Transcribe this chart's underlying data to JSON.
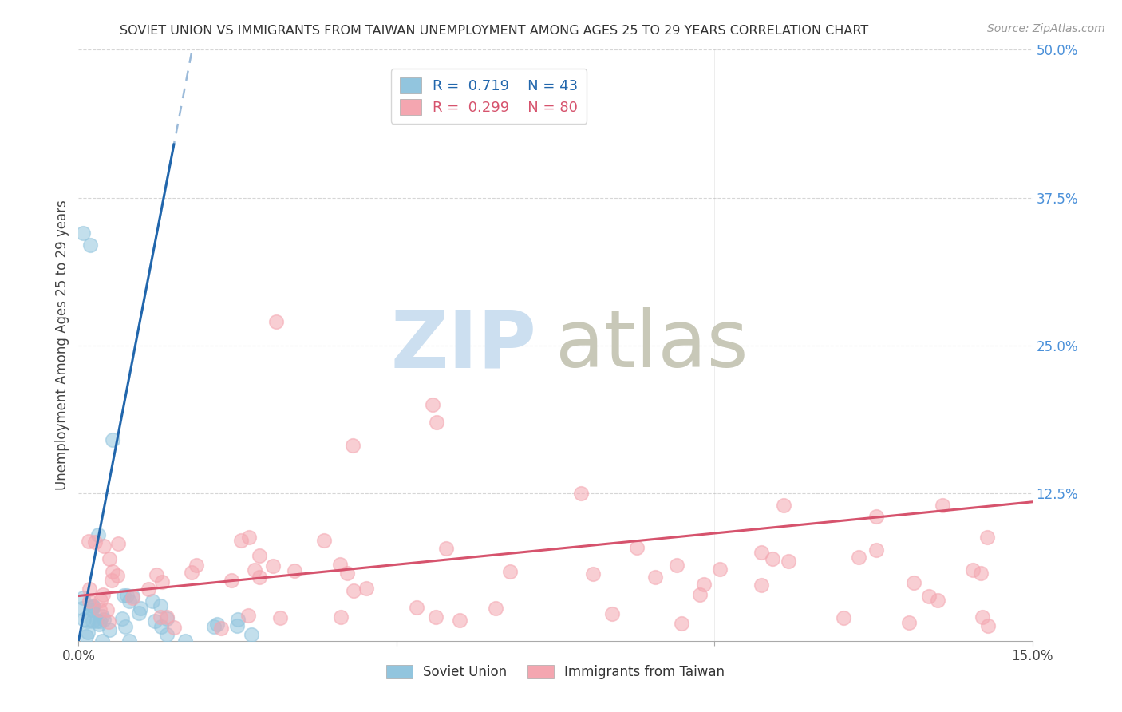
{
  "title": "SOVIET UNION VS IMMIGRANTS FROM TAIWAN UNEMPLOYMENT AMONG AGES 25 TO 29 YEARS CORRELATION CHART",
  "source": "Source: ZipAtlas.com",
  "ylabel": "Unemployment Among Ages 25 to 29 years",
  "xlim": [
    0,
    0.15
  ],
  "ylim": [
    0,
    0.5
  ],
  "soviet_R": 0.719,
  "soviet_N": 43,
  "taiwan_R": 0.299,
  "taiwan_N": 80,
  "soviet_color": "#92c5de",
  "taiwan_color": "#f4a6b0",
  "soviet_line_color": "#2166ac",
  "taiwan_line_color": "#d6536d",
  "right_label_color": "#4a90d9",
  "background_color": "#ffffff",
  "grid_color": "#cccccc",
  "watermark_zip_color": "#ccdff0",
  "watermark_atlas_color": "#c8c8b8",
  "legend_box_color": "#e8e8f8",
  "soviet_line_slope": 28.0,
  "soviet_line_intercept": 0.0,
  "taiwan_line_slope": 0.53,
  "taiwan_line_intercept": 0.038
}
